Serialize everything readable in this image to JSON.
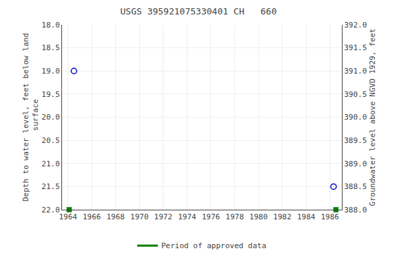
{
  "chart_data": {
    "type": "scatter",
    "title": "USGS 395921075330401 CH   660",
    "y_label": "Depth to water level, feet below land\n surface",
    "y2_label": "Groundwater level above NGVD 1929, feet",
    "xlim": [
      1963.5,
      1987.0
    ],
    "xticks": [
      1964,
      1966,
      1968,
      1970,
      1972,
      1974,
      1976,
      1978,
      1980,
      1982,
      1984,
      1986
    ],
    "ylim": [
      22.0,
      18.0
    ],
    "yticks": [
      {
        "value": 18.0,
        "label": "18.0"
      },
      {
        "value": 18.5,
        "label": "18.5"
      },
      {
        "value": 19.0,
        "label": "19.0"
      },
      {
        "value": 19.5,
        "label": "19.5"
      },
      {
        "value": 20.0,
        "label": "20.0"
      },
      {
        "value": 20.5,
        "label": "20.5"
      },
      {
        "value": 21.0,
        "label": "21.0"
      },
      {
        "value": 21.5,
        "label": "21.5"
      },
      {
        "value": 22.0,
        "label": "22.0"
      }
    ],
    "y2lim": [
      388.0,
      392.0
    ],
    "y2ticks": [
      {
        "value": 392.0,
        "label": "392.0"
      },
      {
        "value": 391.5,
        "label": "391.5"
      },
      {
        "value": 391.0,
        "label": "391.0"
      },
      {
        "value": 390.5,
        "label": "390.5"
      },
      {
        "value": 390.0,
        "label": "390.0"
      },
      {
        "value": 389.5,
        "label": "389.5"
      },
      {
        "value": 389.0,
        "label": "389.0"
      },
      {
        "value": 388.5,
        "label": "388.5"
      },
      {
        "value": 388.0,
        "label": "388.0"
      }
    ],
    "grid": true,
    "series": [
      {
        "x": [
          1964.5,
          1986.3
        ],
        "values": [
          19.0,
          21.5
        ],
        "color": "#0000cc",
        "marker": "open_circle"
      },
      {
        "name": "Period of approved data",
        "x": [
          1964.1,
          1986.5
        ],
        "values": [
          22.0,
          22.0
        ],
        "color": "#008000",
        "marker": "square"
      }
    ]
  }
}
